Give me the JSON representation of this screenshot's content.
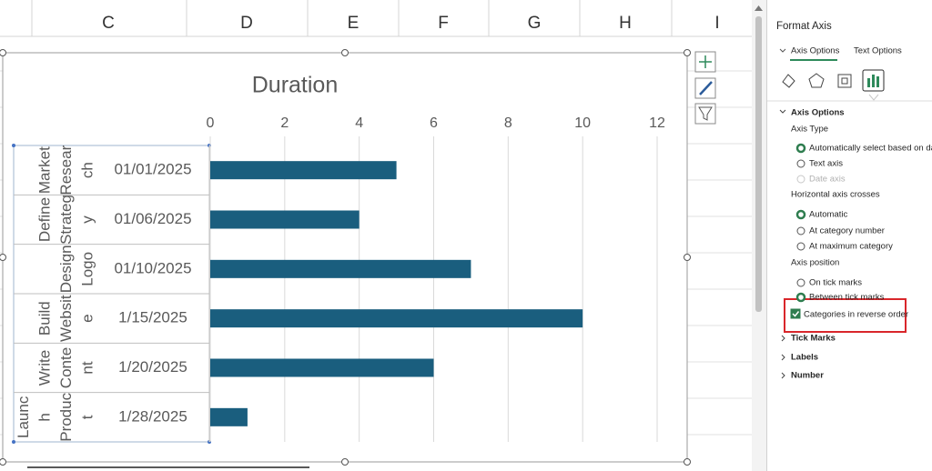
{
  "sheet": {
    "columns": [
      "C",
      "D",
      "E",
      "F",
      "G",
      "H",
      "I"
    ]
  },
  "chart_data": {
    "type": "bar",
    "title": "Duration",
    "categories": [
      [
        "Market",
        "Resear",
        "ch"
      ],
      [
        "Define",
        "Strateg",
        "y"
      ],
      [
        "Design",
        "Logo"
      ],
      [
        "Build",
        "Websit",
        "e"
      ],
      [
        "Write",
        "Conte",
        "nt"
      ],
      [
        "Launc",
        "h",
        "Produc",
        "t"
      ]
    ],
    "dates": [
      "01/01/2025",
      "01/06/2025",
      "01/10/2025",
      "1/15/2025",
      "1/20/2025",
      "1/28/2025"
    ],
    "values": [
      5,
      4,
      7,
      10,
      6,
      1
    ],
    "color": "#1a5e7e",
    "xlim": [
      0,
      12
    ],
    "xticks": [
      0,
      2,
      4,
      6,
      8,
      10,
      12
    ],
    "grid": true
  },
  "panel": {
    "title": "Format Axis",
    "tabs": [
      "Axis Options",
      "Text Options"
    ],
    "section": "Axis Options",
    "groups": [
      {
        "label": "Axis Type",
        "options": [
          {
            "text": "Automatically select based on data",
            "checked": true,
            "disabled": false
          },
          {
            "text": "Text axis",
            "checked": false,
            "disabled": false
          },
          {
            "text": "Date axis",
            "checked": false,
            "disabled": true
          }
        ]
      },
      {
        "label": "Horizontal axis crosses",
        "options": [
          {
            "text": "Automatic",
            "checked": true,
            "disabled": false
          },
          {
            "text": "At category number",
            "checked": false,
            "disabled": false
          },
          {
            "text": "At maximum category",
            "checked": false,
            "disabled": false
          }
        ]
      },
      {
        "label": "Axis position",
        "options": [
          {
            "text": "On tick marks",
            "checked": false,
            "disabled": false
          },
          {
            "text": "Between tick marks",
            "checked": true,
            "disabled": false
          }
        ]
      }
    ],
    "checkbox": {
      "text": "Categories in reverse order",
      "checked": true
    },
    "collapsed": [
      "Tick Marks",
      "Labels",
      "Number"
    ]
  }
}
